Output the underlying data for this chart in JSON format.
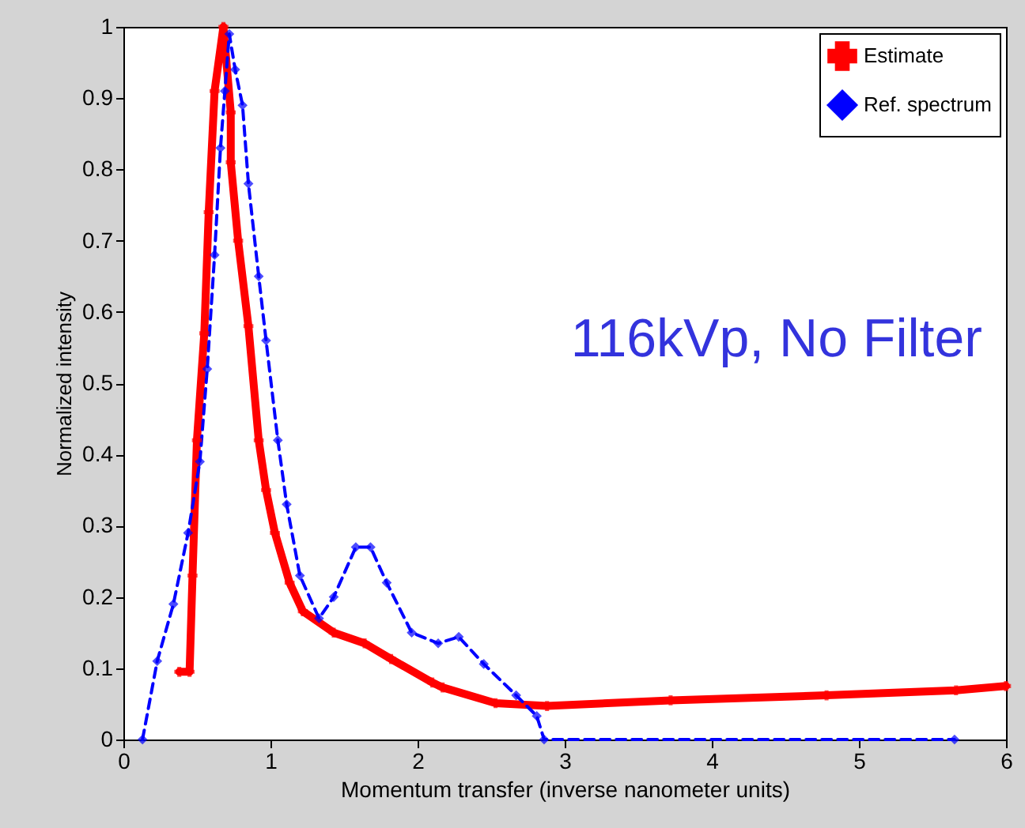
{
  "chart_data": {
    "type": "line",
    "xlabel": "Momentum transfer (inverse nanometer units)",
    "ylabel": "Normalized intensity",
    "annotations": [
      "116kVp, No Filter"
    ],
    "xlim": [
      0,
      6
    ],
    "ylim": [
      0,
      1
    ],
    "xticks": [
      0,
      1,
      2,
      3,
      4,
      5,
      6
    ],
    "yticks": [
      0,
      0.1,
      0.2,
      0.3,
      0.4,
      0.5,
      0.6,
      0.7,
      0.8,
      0.9,
      1
    ],
    "grid": false,
    "legend": "top right",
    "series": [
      {
        "name": "Estimate",
        "color": "#ff0000",
        "line_style": "solid",
        "marker": "cross",
        "x": [
          0.38,
          0.45,
          0.47,
          0.5,
          0.55,
          0.58,
          0.62,
          0.68,
          0.73,
          0.73,
          0.78,
          0.85,
          0.92,
          0.97,
          1.03,
          1.13,
          1.22,
          1.43,
          1.64,
          1.82,
          2.1,
          2.17,
          2.53,
          2.88,
          3.72,
          4.78,
          5.66,
          6.0
        ],
        "values": [
          0.095,
          0.095,
          0.23,
          0.42,
          0.57,
          0.74,
          0.91,
          1.0,
          0.88,
          0.81,
          0.7,
          0.58,
          0.42,
          0.35,
          0.29,
          0.22,
          0.18,
          0.15,
          0.135,
          0.113,
          0.08,
          0.073,
          0.051,
          0.047,
          0.055,
          0.062,
          0.069,
          0.075
        ]
      },
      {
        "name": "Ref. spectrum",
        "color": "#0000ff",
        "line_style": "dashed",
        "marker": "diamond",
        "x": [
          0.13,
          0.23,
          0.34,
          0.44,
          0.52,
          0.57,
          0.62,
          0.66,
          0.69,
          0.72,
          0.76,
          0.81,
          0.85,
          0.92,
          0.97,
          1.05,
          1.11,
          1.2,
          1.33,
          1.43,
          1.58,
          1.68,
          1.79,
          1.96,
          2.14,
          2.28,
          2.45,
          2.67,
          2.81,
          2.86,
          5.65
        ],
        "values": [
          0.0,
          0.11,
          0.19,
          0.29,
          0.39,
          0.52,
          0.68,
          0.83,
          0.91,
          0.99,
          0.94,
          0.89,
          0.78,
          0.65,
          0.56,
          0.42,
          0.33,
          0.23,
          0.17,
          0.2,
          0.27,
          0.27,
          0.22,
          0.15,
          0.135,
          0.144,
          0.106,
          0.062,
          0.033,
          0.0,
          0.0
        ]
      }
    ]
  }
}
